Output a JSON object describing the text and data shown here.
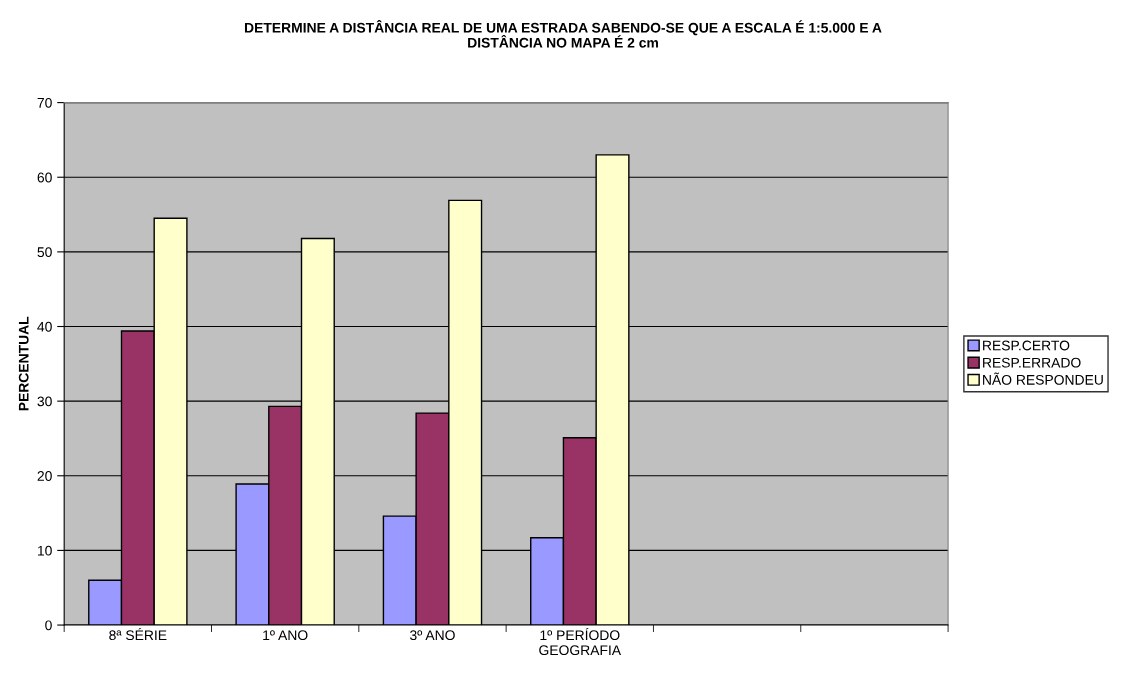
{
  "chart_data": {
    "type": "bar",
    "title": "DETERMINE A DISTÂNCIA REAL DE UMA ESTRADA SABENDO-SE QUE A ESCALA É 1:5.000 E A\nDISTÂNCIA NO MAPA É 2 cm",
    "ylabel": "PERCENTUAL",
    "categories": [
      "8ª SÉRIE",
      "1º ANO",
      "3º ANO",
      "1º PERÍODO\nGEOGRAFIA",
      null,
      null
    ],
    "series": [
      {
        "name": "RESP.CERTO",
        "color": "#9999ff",
        "values": [
          6.0,
          18.9,
          14.6,
          11.7,
          null,
          null
        ]
      },
      {
        "name": "RESP.ERRADO",
        "color": "#993366",
        "values": [
          39.4,
          29.3,
          28.4,
          25.1,
          null,
          null
        ]
      },
      {
        "name": "NÃO RESPONDEU",
        "color": "#ffffcc",
        "values": [
          54.5,
          51.8,
          56.9,
          63.0,
          null,
          null
        ]
      }
    ],
    "ylim": [
      0,
      70
    ],
    "yticks": [
      0,
      10,
      20,
      30,
      40,
      50,
      60,
      70
    ],
    "grid": "y",
    "legend": "right"
  }
}
